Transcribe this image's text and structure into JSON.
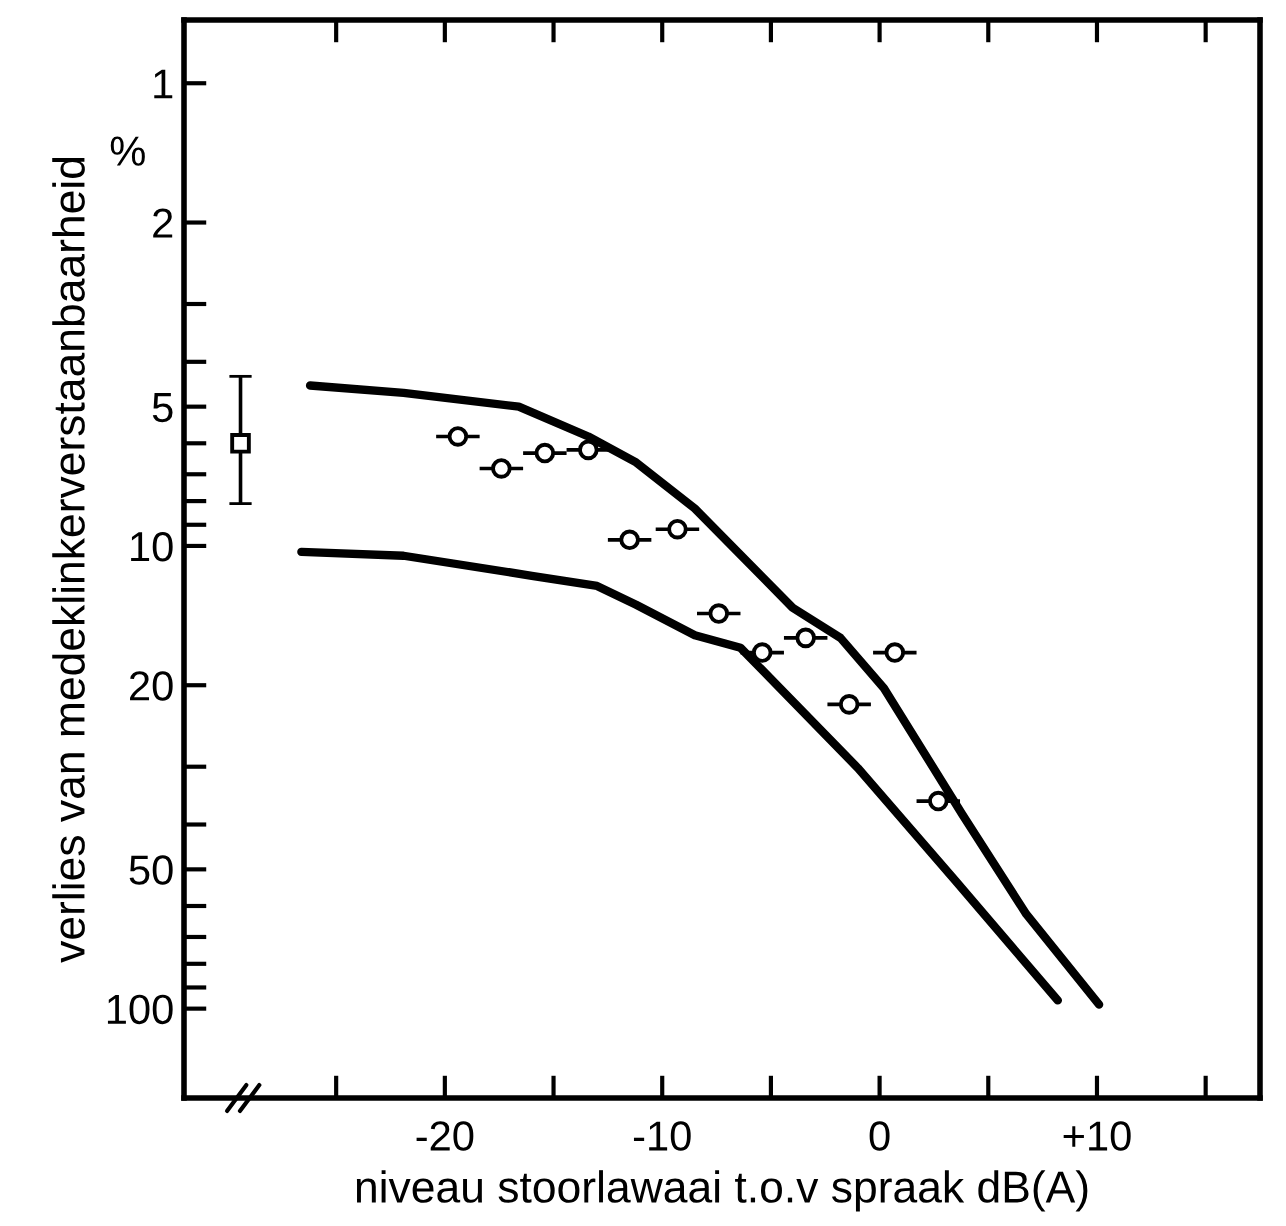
{
  "chart_data": {
    "type": "scatter",
    "xlabel": "niveau stoorlawaai t.o.v spraak dB(A)",
    "ylabel": "verlies van medeklinkerverstaanbaarheid",
    "annotations": [
      "%"
    ],
    "log": "y",
    "grid": false,
    "legend": false,
    "xlim": [
      -32,
      17.5
    ],
    "ylim": [
      156,
      0.73
    ],
    "xticks": [
      {
        "value": -25,
        "label": null
      },
      -20,
      {
        "value": -15,
        "label": null
      },
      -10,
      {
        "value": -5,
        "label": null
      },
      0,
      {
        "value": 5,
        "label": null
      },
      {
        "value": 10,
        "label": "+10"
      },
      {
        "value": 15,
        "label": null
      }
    ],
    "yticks": [
      1,
      2,
      {
        "value": 3,
        "label": null
      },
      {
        "value": 4,
        "label": null
      },
      5,
      {
        "value": 6,
        "label": null
      },
      {
        "value": 7,
        "label": null
      },
      {
        "value": 8,
        "label": null
      },
      {
        "value": 9,
        "label": null
      },
      10,
      20,
      {
        "value": 30,
        "label": null
      },
      {
        "value": 40,
        "label": null
      },
      50,
      {
        "value": 60,
        "label": null
      },
      {
        "value": 70,
        "label": null
      },
      {
        "value": 80,
        "label": null
      },
      {
        "value": 90,
        "label": null
      },
      100
    ],
    "series": [
      {
        "type": "scatter",
        "marker": "circle",
        "color": "#000000",
        "x": [
          -19.4,
          -17.4,
          -15.4,
          -13.4,
          -11.5,
          -9.3,
          -7.4,
          -5.4,
          -3.4,
          -1.4,
          0.7,
          2.7
        ],
        "values": [
          5.8,
          6.8,
          6.3,
          6.2,
          9.7,
          9.2,
          14,
          17,
          15.8,
          22,
          17,
          35.6
        ],
        "xerrors": [
          1,
          1,
          1,
          1,
          1,
          1,
          1,
          1,
          1,
          1,
          1,
          1
        ]
      },
      {
        "type": "scatter",
        "marker": "square",
        "color": "#000000",
        "x": [
          -29.4
        ],
        "values": [
          6.0
        ],
        "errors": [
          [
            4.3,
            8.1
          ]
        ]
      },
      {
        "type": "line",
        "marker": "none",
        "color": "#000000",
        "x": [
          -26.2,
          -21.9,
          -16.6,
          -13.4,
          -11.2,
          -8.5,
          -4.0,
          -1.8,
          0.2,
          3.8,
          6.75,
          10.1
        ],
        "values": [
          4.5,
          4.67,
          5.0,
          5.8,
          6.6,
          8.3,
          13.6,
          15.8,
          20.3,
          38,
          62.5,
          98
        ]
      },
      {
        "type": "line",
        "marker": "none",
        "color": "#000000",
        "x": [
          -26.6,
          -21.9,
          -16.0,
          -13.0,
          -11.2,
          -8.5,
          -6.4,
          -1.0,
          3.5,
          8.2
        ],
        "values": [
          10.3,
          10.5,
          11.6,
          12.2,
          13.4,
          15.6,
          16.6,
          30.2,
          53,
          96
        ]
      }
    ]
  }
}
